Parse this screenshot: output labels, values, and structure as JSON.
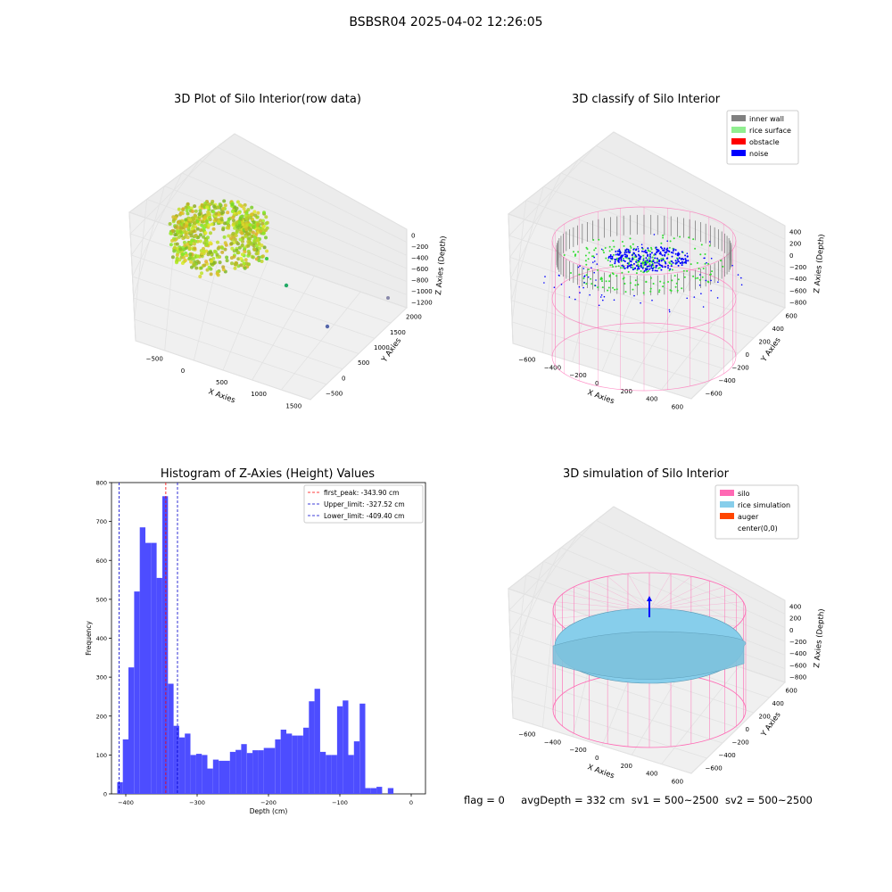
{
  "figure": {
    "title": "BSBSR04 2025-04-02 12:26:05",
    "footer": {
      "flag": "flag = 0",
      "avg_depth": "avgDepth = 332 cm",
      "sv1": "sv1 = 500~2500",
      "sv2": "sv2 = 500~2500"
    }
  },
  "colors": {
    "inner_wall": "#808080",
    "rice_surface": "#90ee90",
    "obstacle": "#ff0000",
    "noise": "#0000ff",
    "silo": "#ff69b4",
    "rice_simulation": "#87ceeb",
    "auger": "#ff4500",
    "histogram_bar": "#4d4dff",
    "first_peak_line": "#ff0000",
    "limit_line": "#0000cc"
  },
  "chart_data": [
    {
      "type": "scatter3d",
      "title": "3D Plot of Silo Interior(row data)",
      "xlabel": "X Axies",
      "ylabel": "Y Axies",
      "zlabel": "Z Axies (Depth)",
      "x_ticks": [
        "−500",
        "0",
        "500",
        "1000",
        "1500"
      ],
      "y_ticks": [
        "−500",
        "0",
        "500",
        "1000",
        "1500",
        "2000"
      ],
      "z_ticks": [
        "0",
        "−200",
        "−400",
        "−600",
        "−800",
        "−1000",
        "−1200"
      ],
      "note": "ring-shaped point cloud near X≈-200..300, Y≈-300..300, Z≈-300..-800 plus scattered outliers"
    },
    {
      "type": "scatter3d",
      "title": "3D classify of Silo Interior",
      "xlabel": "X Axies",
      "ylabel": "Y Axies",
      "zlabel": "Z Axies (Depth)",
      "x_ticks": [
        "−600",
        "−400",
        "−200",
        "0",
        "200",
        "400",
        "600"
      ],
      "y_ticks": [
        "−600",
        "−400",
        "−200",
        "0",
        "200",
        "400",
        "600"
      ],
      "z_ticks": [
        "400",
        "200",
        "0",
        "−200",
        "−400",
        "−600",
        "−800"
      ],
      "legend": [
        "inner wall",
        "rice surface",
        "obstacle",
        "noise"
      ],
      "legend_position": "top-right"
    },
    {
      "type": "bar",
      "title": "Histogram of Z-Axies (Height) Values",
      "xlabel": "Depth (cm)",
      "ylabel": "Frequency",
      "xlim": [
        -420,
        20
      ],
      "ylim": [
        0,
        800
      ],
      "x_ticks": [
        "−400",
        "−300",
        "−200",
        "−100",
        "0"
      ],
      "y_ticks": [
        "0",
        "100",
        "200",
        "300",
        "400",
        "500",
        "600",
        "700",
        "800"
      ],
      "bin_start": -412,
      "bin_width": 7.9,
      "values": [
        30,
        140,
        325,
        520,
        685,
        645,
        645,
        555,
        765,
        283,
        175,
        145,
        155,
        100,
        103,
        100,
        65,
        88,
        85,
        85,
        108,
        113,
        128,
        105,
        112,
        112,
        118,
        118,
        140,
        165,
        155,
        150,
        150,
        170,
        238,
        270,
        108,
        100,
        100,
        225,
        240,
        100,
        135,
        232,
        15,
        15,
        18,
        0,
        15
      ],
      "vlines": [
        {
          "label": "first_peak: -343.90 cm",
          "x": -343.9,
          "style": "first_peak"
        },
        {
          "label": "Upper_limit: -327.52 cm",
          "x": -327.52,
          "style": "limit"
        },
        {
          "label": "Lower_limit: -409.40 cm",
          "x": -409.4,
          "style": "limit"
        }
      ],
      "legend_position": "top-right"
    },
    {
      "type": "surface3d",
      "title": "3D simulation of Silo Interior",
      "xlabel": "X Axies",
      "ylabel": "Y Axies",
      "zlabel": "Z Axies (Depth)",
      "x_ticks": [
        "−600",
        "−400",
        "−200",
        "0",
        "200",
        "400",
        "600"
      ],
      "y_ticks": [
        "−600",
        "−400",
        "−200",
        "0",
        "200",
        "400",
        "600"
      ],
      "z_ticks": [
        "400",
        "200",
        "0",
        "−200",
        "−400",
        "−600",
        "−800"
      ],
      "legend": [
        "silo",
        "rice simulation",
        "auger",
        "center(0,0)"
      ],
      "legend_position": "top-right"
    }
  ]
}
